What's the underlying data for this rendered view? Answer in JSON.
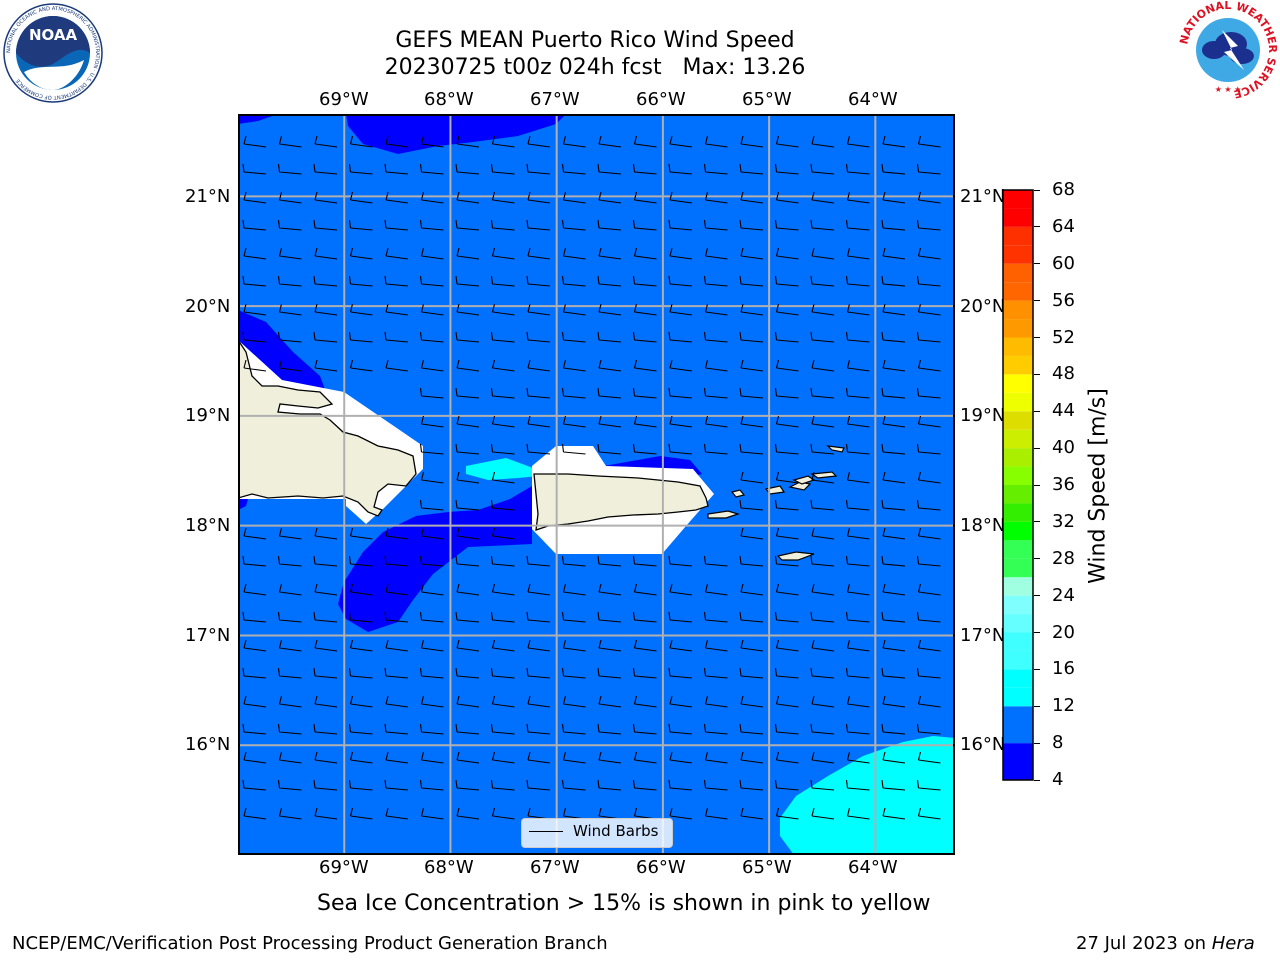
{
  "chart_data": {
    "type": "heatmap",
    "title": "GEFS MEAN Puerto Rico Wind Speed",
    "subtitle_line": "20230725 t00z 024h fcst   Max: 13.26",
    "map_extent": {
      "lon": [
        -70.0,
        -63.25
      ],
      "lat": [
        15.0,
        21.75
      ]
    },
    "lon_ticks": [
      "69°W",
      "68°W",
      "67°W",
      "66°W",
      "65°W",
      "64°W"
    ],
    "lat_ticks": [
      "21°N",
      "20°N",
      "19°N",
      "18°N",
      "17°N",
      "16°N"
    ],
    "grid": true,
    "legend": {
      "label": "Wind Barbs",
      "placement": "bottom-center"
    },
    "dominant_level": "8-12",
    "max_value": 13.26,
    "colorbar": {
      "label": "Wind Speed [m/s]",
      "ticks": [
        "4",
        "8",
        "12",
        "16",
        "20",
        "24",
        "28",
        "32",
        "36",
        "40",
        "44",
        "48",
        "52",
        "56",
        "60",
        "64",
        "68"
      ],
      "range": [
        4,
        68
      ],
      "bins": [
        {
          "from": 4,
          "to": 8,
          "color": "#0000ff"
        },
        {
          "from": 8,
          "to": 12,
          "color": "#0070ff"
        },
        {
          "from": 12,
          "to": 14,
          "color": "#00ffff"
        },
        {
          "from": 14,
          "to": 16,
          "color": "#00ffff"
        },
        {
          "from": 16,
          "to": 18,
          "color": "#40ffff"
        },
        {
          "from": 18,
          "to": 20,
          "color": "#40ffff"
        },
        {
          "from": 20,
          "to": 22,
          "color": "#66ffff"
        },
        {
          "from": 22,
          "to": 24,
          "color": "#80ffff"
        },
        {
          "from": 24,
          "to": 26,
          "color": "#a0ffe0"
        },
        {
          "from": 26,
          "to": 28,
          "color": "#33ff55"
        },
        {
          "from": 28,
          "to": 30,
          "color": "#33ff55"
        },
        {
          "from": 30,
          "to": 32,
          "color": "#00ff00"
        },
        {
          "from": 32,
          "to": 34,
          "color": "#33ee00"
        },
        {
          "from": 34,
          "to": 36,
          "color": "#66ee00"
        },
        {
          "from": 36,
          "to": 38,
          "color": "#88ff00"
        },
        {
          "from": 38,
          "to": 40,
          "color": "#aaee00"
        },
        {
          "from": 40,
          "to": 42,
          "color": "#ccee00"
        },
        {
          "from": 42,
          "to": 44,
          "color": "#dddd00"
        },
        {
          "from": 44,
          "to": 46,
          "color": "#eeff00"
        },
        {
          "from": 46,
          "to": 48,
          "color": "#ffff00"
        },
        {
          "from": 48,
          "to": 50,
          "color": "#ffcc00"
        },
        {
          "from": 50,
          "to": 52,
          "color": "#ffbb00"
        },
        {
          "from": 52,
          "to": 54,
          "color": "#ff9900"
        },
        {
          "from": 54,
          "to": 56,
          "color": "#ff9000"
        },
        {
          "from": 56,
          "to": 58,
          "color": "#ff6600"
        },
        {
          "from": 58,
          "to": 60,
          "color": "#ff6000"
        },
        {
          "from": 60,
          "to": 62,
          "color": "#ff3300"
        },
        {
          "from": 62,
          "to": 64,
          "color": "#ff3000"
        },
        {
          "from": 64,
          "to": 66,
          "color": "#ff0000"
        },
        {
          "from": 66,
          "to": 68,
          "color": "#ff0000"
        }
      ]
    }
  },
  "colors": {
    "level_4_8": "#0000ff",
    "level_8_12": "#0070ff",
    "level_12_16": "#00ffff",
    "land": "#efefdb",
    "grid": "#b0b0b0"
  },
  "note": "Sea Ice Concentration > 15% is shown in pink to yellow",
  "footer": {
    "left": "NCEP/EMC/Verification Post Processing Product Generation Branch",
    "right_date": "27 Jul 2023 on ",
    "right_host": "Hera"
  },
  "logos": {
    "left_text": "NOAA",
    "left_ring_text": "NATIONAL OCEANIC AND ATMOSPHERIC ADMINISTRATION · U.S. DEPARTMENT OF COMMERCE",
    "right_ring_text": "NATIONAL WEATHER SERVICE"
  }
}
